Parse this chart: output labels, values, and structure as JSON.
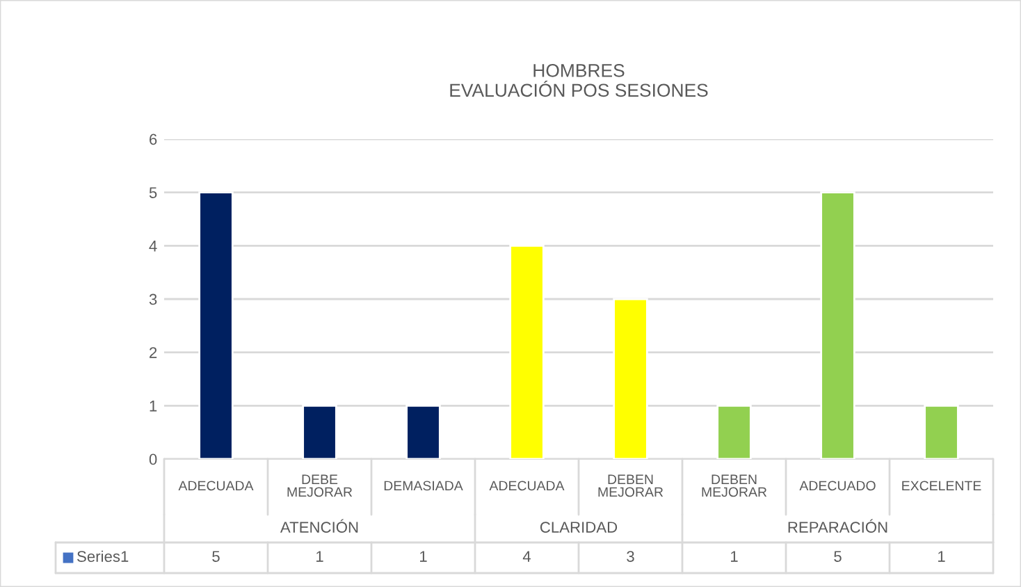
{
  "chart_data": {
    "type": "bar",
    "title": "HOMBRES\nEVALUACIÓN POS SESIONES",
    "categories": [
      "ADECUADA",
      "DEBE MEJORAR",
      "DEMASIADA",
      "ADECUADA",
      "DEBEN MEJORAR",
      "DEBEN MEJORAR",
      "ADECUADO",
      "EXCELENTE"
    ],
    "annotations": [
      "ATENCIÓN",
      "CLARIDAD",
      "REPARACIÓN"
    ],
    "series": [
      {
        "name": "Series1",
        "color": "#4472c4",
        "colors": [
          "#002060",
          "#002060",
          "#002060",
          "#ffff00",
          "#ffff00",
          "#92d050",
          "#92d050",
          "#92d050"
        ],
        "values": [
          5,
          1,
          1,
          4,
          3,
          1,
          5,
          1
        ]
      }
    ],
    "ylim": [
      0,
      6
    ],
    "yticks": [
      0,
      1,
      2,
      3,
      4,
      5,
      6
    ],
    "grid": "y",
    "legend": "bottom",
    "data_labels": true
  }
}
